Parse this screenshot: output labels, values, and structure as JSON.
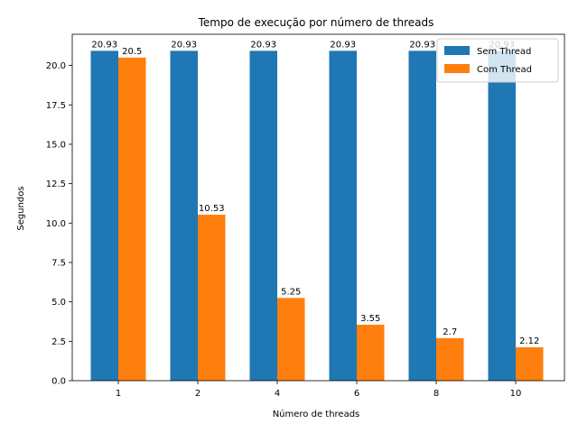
{
  "chart_data": {
    "type": "bar",
    "title": "Tempo de execução por número de threads",
    "xlabel": "Número de threads",
    "ylabel": "Segundos",
    "categories": [
      "1",
      "2",
      "4",
      "6",
      "8",
      "10"
    ],
    "series": [
      {
        "name": "Sem Thread",
        "color": "#1f77b4",
        "values": [
          20.93,
          20.93,
          20.93,
          20.93,
          20.93,
          20.93
        ],
        "labels": [
          "20.93",
          "20.93",
          "20.93",
          "20.93",
          "20.93",
          "20.93"
        ]
      },
      {
        "name": "Com Thread",
        "color": "#ff7f0e",
        "values": [
          20.5,
          10.53,
          5.25,
          3.55,
          2.7,
          2.12
        ],
        "labels": [
          "20.5",
          "10.53",
          "5.25",
          "3.55",
          "2.7",
          "2.12"
        ]
      }
    ],
    "ylim": [
      0,
      21.98
    ],
    "yticks": [
      "0.0",
      "2.5",
      "5.0",
      "7.5",
      "10.0",
      "12.5",
      "15.0",
      "17.5",
      "20.0"
    ],
    "grid": false,
    "legend_position": "top-right"
  }
}
